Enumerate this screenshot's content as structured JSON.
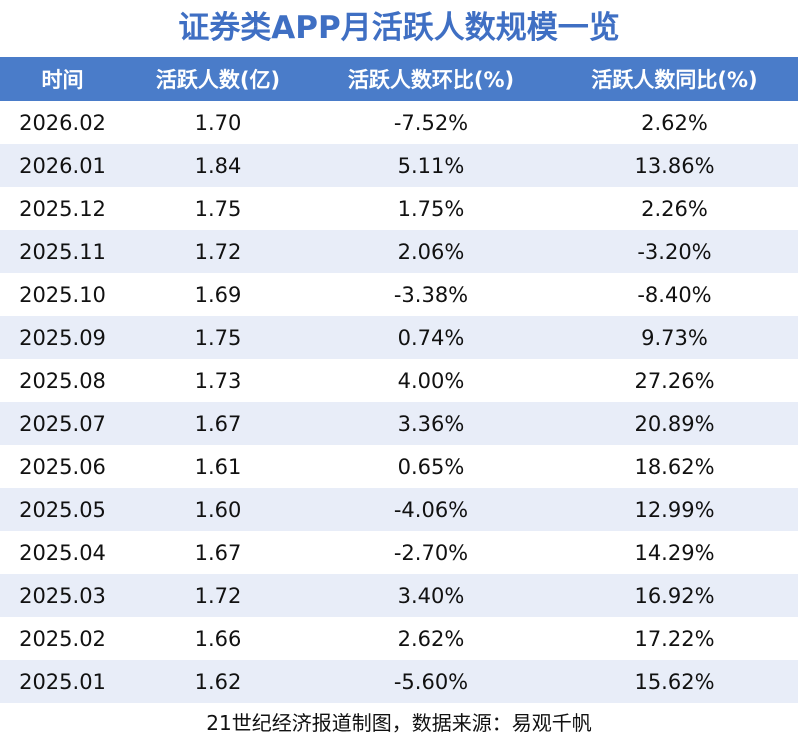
{
  "title": "证券类APP月活跃人数规模一览",
  "table": {
    "header": [
      "时间",
      "活跃人数(亿)",
      "活跃人数环比(%)",
      "活跃人数同比(%)"
    ],
    "rows": [
      [
        "2026.02",
        "1.70",
        "-7.52%",
        "2.62%"
      ],
      [
        "2026.01",
        "1.84",
        "5.11%",
        "13.86%"
      ],
      [
        "2025.12",
        "1.75",
        "1.75%",
        "2.26%"
      ],
      [
        "2025.11",
        "1.72",
        "2.06%",
        "-3.20%"
      ],
      [
        "2025.10",
        "1.69",
        "-3.38%",
        "-8.40%"
      ],
      [
        "2025.09",
        "1.75",
        "0.74%",
        "9.73%"
      ],
      [
        "2025.08",
        "1.73",
        "4.00%",
        "27.26%"
      ],
      [
        "2025.07",
        "1.67",
        "3.36%",
        "20.89%"
      ],
      [
        "2025.06",
        "1.61",
        "0.65%",
        "18.62%"
      ],
      [
        "2025.05",
        "1.60",
        "-4.06%",
        "12.99%"
      ],
      [
        "2025.04",
        "1.67",
        "-2.70%",
        "14.29%"
      ],
      [
        "2025.03",
        "1.72",
        "3.40%",
        "16.92%"
      ],
      [
        "2025.02",
        "1.66",
        "2.62%",
        "17.22%"
      ],
      [
        "2025.01",
        "1.62",
        "-5.60%",
        "15.62%"
      ]
    ]
  },
  "footer": "21世纪经济报道制图，数据来源：易观千帆"
}
